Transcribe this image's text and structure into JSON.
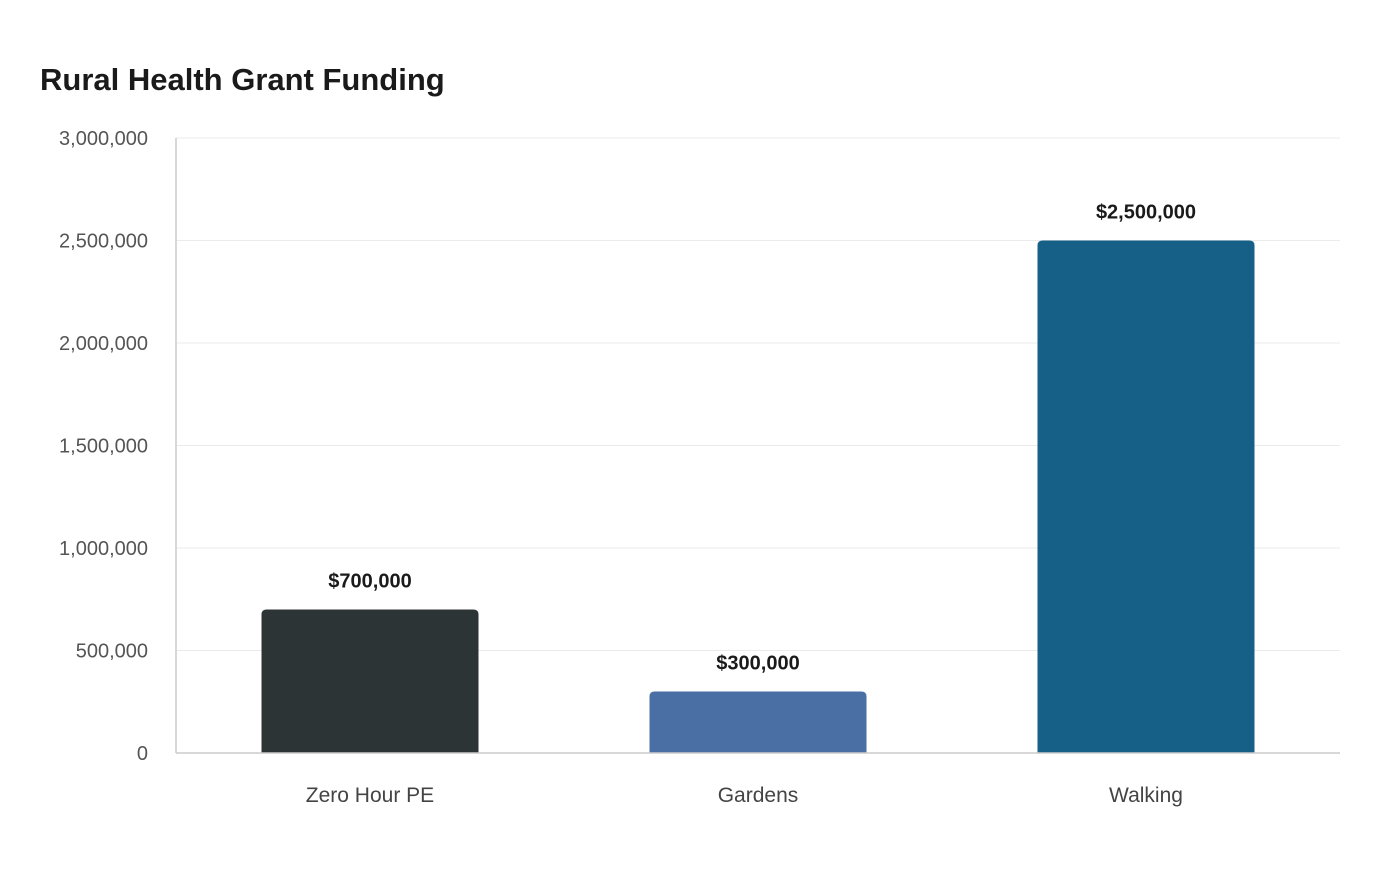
{
  "chart_data": {
    "type": "bar",
    "title": "Rural Health Grant Funding",
    "xlabel": "",
    "ylabel": "",
    "categories": [
      "Zero Hour PE",
      "Gardens",
      "Walking"
    ],
    "values": [
      700000,
      300000,
      2500000
    ],
    "value_labels": [
      "$700,000",
      "$300,000",
      "$2,500,000"
    ],
    "bar_colors": [
      "#2d3436",
      "#4a6fa5",
      "#166088"
    ],
    "ylim": [
      0,
      3000000
    ],
    "y_ticks": [
      0,
      500000,
      1000000,
      1500000,
      2000000,
      2500000,
      3000000
    ],
    "y_tick_labels": [
      "0",
      "500,000",
      "1,000,000",
      "1,500,000",
      "2,000,000",
      "2,500,000",
      "3,000,000"
    ],
    "grid": true,
    "legend": "none"
  }
}
